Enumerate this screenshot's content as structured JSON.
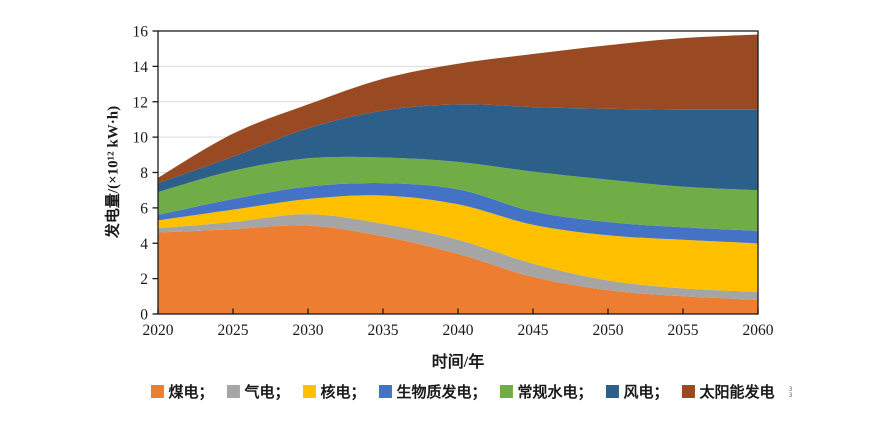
{
  "figure": {
    "background": "#ffffff"
  },
  "chart_data": {
    "type": "area",
    "stacked": true,
    "smooth": true,
    "title": "",
    "xlabel": "时间/年",
    "ylabel": "发电量/(×10¹² kW·h)",
    "x": [
      2020,
      2025,
      2030,
      2035,
      2040,
      2045,
      2050,
      2055,
      2060
    ],
    "xlim": [
      2020,
      2060
    ],
    "ylim": [
      0,
      16
    ],
    "y_tick_step": 2,
    "grid": "horizontal",
    "grid_color": "#d9d9d9",
    "axis_color": "#1a1a1a",
    "legend_position": "bottom",
    "series": [
      {
        "key": "coal",
        "name": "煤电",
        "legend_label": "煤电；",
        "color": "#ED7D31",
        "values": [
          4.6,
          4.8,
          5.0,
          4.4,
          3.4,
          2.1,
          1.35,
          1.0,
          0.8
        ]
      },
      {
        "key": "gas",
        "name": "气电",
        "legend_label": "气电；",
        "color": "#A5A5A5",
        "values": [
          0.25,
          0.4,
          0.65,
          0.7,
          0.8,
          0.75,
          0.55,
          0.45,
          0.45
        ]
      },
      {
        "key": "nuclear",
        "name": "核电",
        "legend_label": "核电；",
        "color": "#FFC000",
        "values": [
          0.45,
          0.7,
          0.85,
          1.6,
          2.0,
          2.2,
          2.55,
          2.75,
          2.75
        ]
      },
      {
        "key": "biomass",
        "name": "生物质发电",
        "legend_label": "生物质发电；",
        "color": "#4472C4",
        "values": [
          0.3,
          0.6,
          0.7,
          0.7,
          0.85,
          0.75,
          0.75,
          0.7,
          0.7
        ]
      },
      {
        "key": "hydro",
        "name": "常规水电",
        "legend_label": "常规水电；",
        "color": "#70AD47",
        "values": [
          1.3,
          1.6,
          1.6,
          1.45,
          1.55,
          2.25,
          2.4,
          2.3,
          2.3
        ]
      },
      {
        "key": "wind",
        "name": "风电",
        "legend_label": "风电；",
        "color": "#2D5F8B",
        "values": [
          0.5,
          0.8,
          1.7,
          2.65,
          3.25,
          3.65,
          4.0,
          4.35,
          4.55
        ]
      },
      {
        "key": "solar",
        "name": "太阳能发电",
        "legend_label": "太阳能发电",
        "color": "#9A4A22",
        "values": [
          0.3,
          1.3,
          1.35,
          1.8,
          2.3,
          3.0,
          3.6,
          4.05,
          4.25
        ]
      }
    ]
  },
  "stray_mark": "3\n3"
}
